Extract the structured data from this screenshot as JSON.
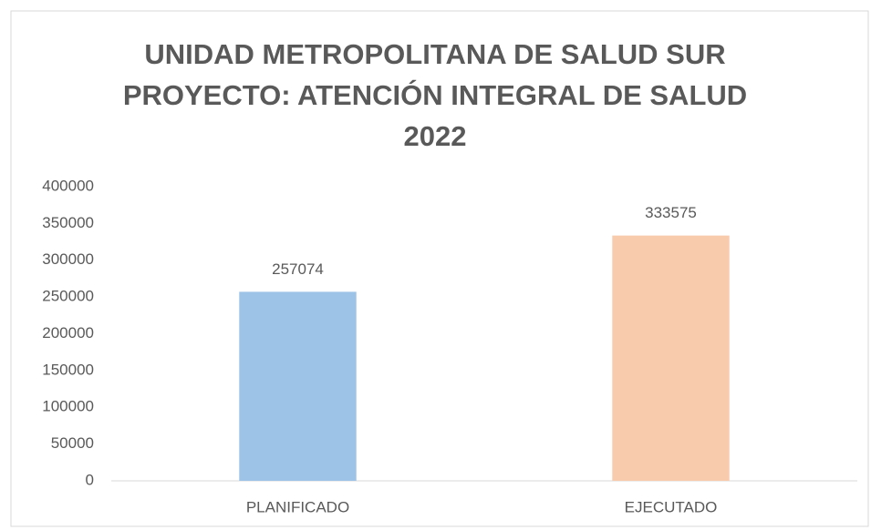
{
  "chart_data": {
    "type": "bar",
    "title": [
      "UNIDAD METROPOLITANA DE SALUD SUR",
      "PROYECTO: ATENCIÓN INTEGRAL DE SALUD",
      "2022"
    ],
    "categories": [
      "PLANIFICADO",
      "EJECUTADO"
    ],
    "values": [
      257074,
      333575
    ],
    "colors": [
      "#9dc3e6",
      "#f8cbad"
    ],
    "ylim": [
      0,
      400000
    ],
    "yticks": [
      0,
      50000,
      100000,
      150000,
      200000,
      250000,
      300000,
      350000,
      400000
    ],
    "grid": false,
    "data_labels": true
  }
}
